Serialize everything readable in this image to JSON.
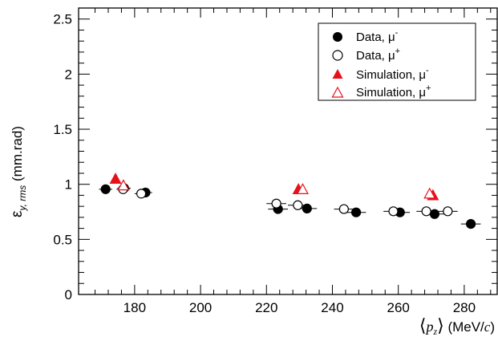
{
  "chart_data": {
    "type": "scatter",
    "xlabel": {
      "bracket_open": "⟨",
      "var": "p",
      "sub": "z",
      "bracket_close": "⟩",
      "unit_open": " (MeV/",
      "unit_c": "c",
      "unit_close": ")"
    },
    "ylabel": {
      "main": "ε",
      "sub": "y, rms",
      "unit": " (mm.rad)"
    },
    "xlim": [
      163,
      290
    ],
    "ylim": [
      0,
      2.6
    ],
    "xticks": [
      {
        "value": 180,
        "label": "180"
      },
      {
        "value": 200,
        "label": "200"
      },
      {
        "value": 220,
        "label": "220"
      },
      {
        "value": 240,
        "label": "240"
      },
      {
        "value": 260,
        "label": "260"
      },
      {
        "value": 280,
        "label": "280"
      }
    ],
    "yticks": [
      {
        "value": 0,
        "label": "0"
      },
      {
        "value": 0.5,
        "label": "0.5"
      },
      {
        "value": 1,
        "label": "1"
      },
      {
        "value": 1.5,
        "label": "1.5"
      },
      {
        "value": 2,
        "label": "2"
      },
      {
        "value": 2.5,
        "label": "2.5"
      }
    ],
    "legend_position": "top-right",
    "series": [
      {
        "name": "Data, μ⁻",
        "legend_main": "Data, μ",
        "legend_sup": "-",
        "marker": "circle",
        "filled": true,
        "color": "#000000",
        "points": [
          {
            "x": 171.2,
            "y": 0.955,
            "xerr": 2.0
          },
          {
            "x": 176.8,
            "y": 0.965,
            "xerr": 2.0
          },
          {
            "x": 183.3,
            "y": 0.925,
            "xerr": 2.0
          },
          {
            "x": 223.5,
            "y": 0.775,
            "xerr": 3.0
          },
          {
            "x": 232.3,
            "y": 0.78,
            "xerr": 3.0
          },
          {
            "x": 247.2,
            "y": 0.745,
            "xerr": 3.0
          },
          {
            "x": 260.5,
            "y": 0.745,
            "xerr": 3.0
          },
          {
            "x": 271.0,
            "y": 0.73,
            "xerr": 3.0
          },
          {
            "x": 282.0,
            "y": 0.64,
            "xerr": 3.0
          }
        ]
      },
      {
        "name": "Data, μ⁺",
        "legend_main": "Data, μ",
        "legend_sup": "+",
        "marker": "circle",
        "filled": false,
        "color": "#000000",
        "points": [
          {
            "x": 176.5,
            "y": 0.955,
            "xerr": 2.0
          },
          {
            "x": 182.0,
            "y": 0.915,
            "xerr": 2.0
          },
          {
            "x": 223.0,
            "y": 0.825,
            "xerr": 3.0
          },
          {
            "x": 229.5,
            "y": 0.81,
            "xerr": 3.0
          },
          {
            "x": 243.5,
            "y": 0.775,
            "xerr": 3.0
          },
          {
            "x": 258.5,
            "y": 0.755,
            "xerr": 3.0
          },
          {
            "x": 268.5,
            "y": 0.755,
            "xerr": 3.0
          },
          {
            "x": 275.0,
            "y": 0.755,
            "xerr": 3.0
          }
        ]
      },
      {
        "name": "Simulation, μ⁻",
        "legend_main": "Simulation, μ",
        "legend_sup": "-",
        "marker": "triangle",
        "filled": true,
        "color": "#e8111b",
        "points": [
          {
            "x": 174.2,
            "y": 1.05,
            "xerr": 0
          },
          {
            "x": 229.7,
            "y": 0.955,
            "xerr": 0
          },
          {
            "x": 270.5,
            "y": 0.9,
            "xerr": 0
          }
        ]
      },
      {
        "name": "Simulation, μ⁺",
        "legend_main": "Simulation, μ",
        "legend_sup": "+",
        "marker": "triangle",
        "filled": false,
        "color": "#e8111b",
        "points": [
          {
            "x": 176.6,
            "y": 0.99,
            "xerr": 0
          },
          {
            "x": 231.0,
            "y": 0.955,
            "xerr": 0
          },
          {
            "x": 269.5,
            "y": 0.915,
            "xerr": 0
          }
        ]
      }
    ]
  }
}
